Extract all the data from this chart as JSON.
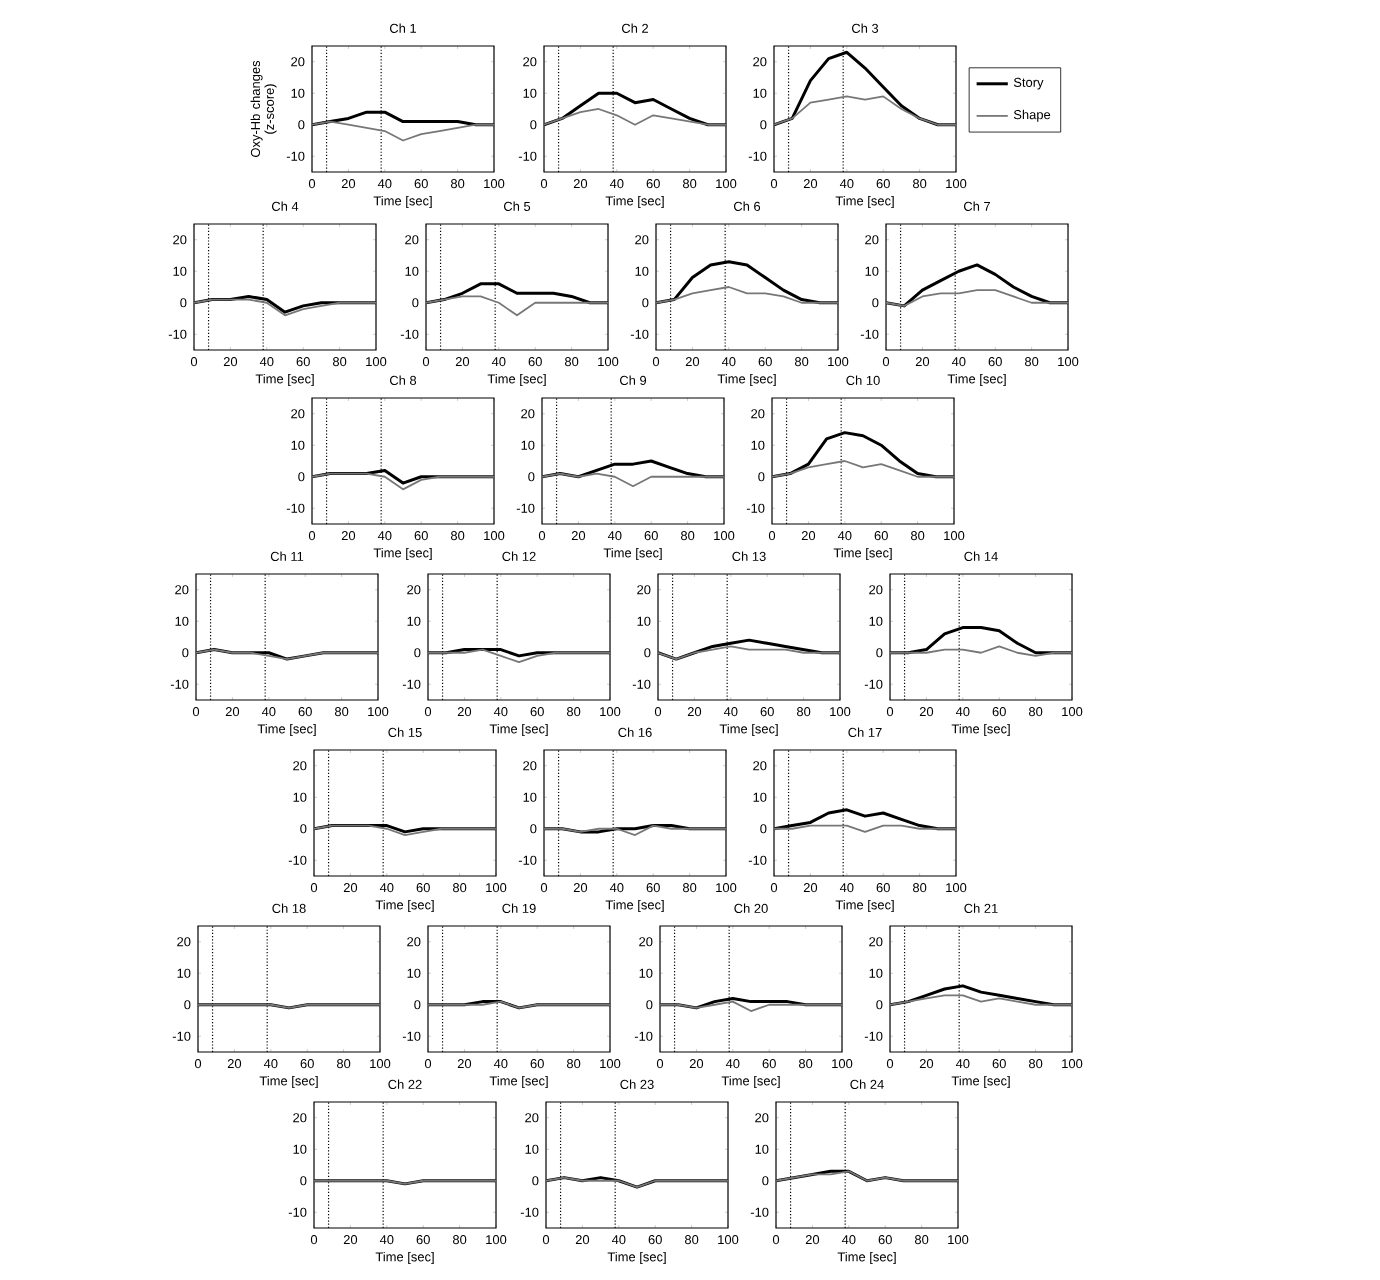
{
  "chart_data": [
    {
      "type": "line",
      "title": "Ch 1",
      "xlabel": "Time [sec]",
      "ylabel": "Oxy-Hb changes (z-score)",
      "x": [
        0,
        10,
        20,
        30,
        40,
        50,
        60,
        70,
        80,
        90,
        100
      ],
      "xlim": [
        0,
        100
      ],
      "ylim": [
        -15,
        25
      ],
      "xticks": [
        0,
        20,
        40,
        60,
        80,
        100
      ],
      "yticks": [
        -10,
        0,
        10,
        20
      ],
      "ref_lines": [
        {
          "axis": "x",
          "value": 8,
          "line_style": "dotted"
        },
        {
          "axis": "x",
          "value": 38,
          "line_style": "dotted"
        }
      ],
      "series": [
        {
          "color": "#000000",
          "values": [
            0,
            1,
            2,
            4,
            4,
            1,
            1,
            1,
            1,
            0,
            0
          ]
        },
        {
          "color": "#777777",
          "values": [
            0,
            1,
            0,
            -1,
            -2,
            -5,
            -3,
            -2,
            -1,
            0,
            0
          ]
        }
      ]
    },
    {
      "type": "line",
      "title": "Ch 2",
      "xlabel": "Time [sec]",
      "x": [
        0,
        10,
        20,
        30,
        40,
        50,
        60,
        70,
        80,
        90,
        100
      ],
      "xlim": [
        0,
        100
      ],
      "ylim": [
        -15,
        25
      ],
      "xticks": [
        0,
        20,
        40,
        60,
        80,
        100
      ],
      "yticks": [
        -10,
        0,
        10,
        20
      ],
      "ref_lines": [
        {
          "axis": "x",
          "value": 8,
          "line_style": "dotted"
        },
        {
          "axis": "x",
          "value": 38,
          "line_style": "dotted"
        }
      ],
      "series": [
        {
          "color": "#000000",
          "values": [
            0,
            2,
            6,
            10,
            10,
            7,
            8,
            5,
            2,
            0,
            0
          ]
        },
        {
          "color": "#777777",
          "values": [
            0,
            2,
            4,
            5,
            3,
            0,
            3,
            2,
            1,
            0,
            0
          ]
        }
      ]
    },
    {
      "type": "line",
      "title": "Ch 3",
      "xlabel": "Time [sec]",
      "x": [
        0,
        10,
        20,
        30,
        40,
        50,
        60,
        70,
        80,
        90,
        100
      ],
      "xlim": [
        0,
        100
      ],
      "ylim": [
        -15,
        25
      ],
      "xticks": [
        0,
        20,
        40,
        60,
        80,
        100
      ],
      "yticks": [
        -10,
        0,
        10,
        20
      ],
      "legend": "right",
      "ref_lines": [
        {
          "axis": "x",
          "value": 8,
          "line_style": "dotted"
        },
        {
          "axis": "x",
          "value": 38,
          "line_style": "dotted"
        }
      ],
      "series": [
        {
          "name": "Story",
          "color": "#000000",
          "values": [
            0,
            2,
            14,
            21,
            23,
            18,
            12,
            6,
            2,
            0,
            0
          ]
        },
        {
          "name": "Shape",
          "color": "#777777",
          "values": [
            0,
            2,
            7,
            8,
            9,
            8,
            9,
            5,
            2,
            0,
            0
          ]
        }
      ]
    },
    {
      "type": "line",
      "title": "Ch 4",
      "xlabel": "Time [sec]",
      "x": [
        0,
        10,
        20,
        30,
        40,
        50,
        60,
        70,
        80,
        90,
        100
      ],
      "xlim": [
        0,
        100
      ],
      "ylim": [
        -15,
        25
      ],
      "xticks": [
        0,
        20,
        40,
        60,
        80,
        100
      ],
      "yticks": [
        -10,
        0,
        10,
        20
      ],
      "ref_lines": [
        {
          "axis": "x",
          "value": 8,
          "line_style": "dotted"
        },
        {
          "axis": "x",
          "value": 38,
          "line_style": "dotted"
        }
      ],
      "series": [
        {
          "color": "#000000",
          "values": [
            0,
            1,
            1,
            2,
            1,
            -3,
            -1,
            0,
            0,
            0,
            0
          ]
        },
        {
          "color": "#777777",
          "values": [
            0,
            1,
            1,
            1,
            0,
            -4,
            -2,
            -1,
            0,
            0,
            0
          ]
        }
      ]
    },
    {
      "type": "line",
      "title": "Ch 5",
      "xlabel": "Time [sec]",
      "x": [
        0,
        10,
        20,
        30,
        40,
        50,
        60,
        70,
        80,
        90,
        100
      ],
      "xlim": [
        0,
        100
      ],
      "ylim": [
        -15,
        25
      ],
      "xticks": [
        0,
        20,
        40,
        60,
        80,
        100
      ],
      "yticks": [
        -10,
        0,
        10,
        20
      ],
      "ref_lines": [
        {
          "axis": "x",
          "value": 8,
          "line_style": "dotted"
        },
        {
          "axis": "x",
          "value": 38,
          "line_style": "dotted"
        }
      ],
      "series": [
        {
          "color": "#000000",
          "values": [
            0,
            1,
            3,
            6,
            6,
            3,
            3,
            3,
            2,
            0,
            0
          ]
        },
        {
          "color": "#777777",
          "values": [
            0,
            1,
            2,
            2,
            0,
            -4,
            0,
            0,
            0,
            0,
            0
          ]
        }
      ]
    },
    {
      "type": "line",
      "title": "Ch 6",
      "xlabel": "Time [sec]",
      "x": [
        0,
        10,
        20,
        30,
        40,
        50,
        60,
        70,
        80,
        90,
        100
      ],
      "xlim": [
        0,
        100
      ],
      "ylim": [
        -15,
        25
      ],
      "xticks": [
        0,
        20,
        40,
        60,
        80,
        100
      ],
      "yticks": [
        -10,
        0,
        10,
        20
      ],
      "ref_lines": [
        {
          "axis": "x",
          "value": 8,
          "line_style": "dotted"
        },
        {
          "axis": "x",
          "value": 38,
          "line_style": "dotted"
        }
      ],
      "series": [
        {
          "color": "#000000",
          "values": [
            0,
            1,
            8,
            12,
            13,
            12,
            8,
            4,
            1,
            0,
            0
          ]
        },
        {
          "color": "#777777",
          "values": [
            0,
            1,
            3,
            4,
            5,
            3,
            3,
            2,
            0,
            0,
            0
          ]
        }
      ]
    },
    {
      "type": "line",
      "title": "Ch 7",
      "xlabel": "Time [sec]",
      "x": [
        0,
        10,
        20,
        30,
        40,
        50,
        60,
        70,
        80,
        90,
        100
      ],
      "xlim": [
        0,
        100
      ],
      "ylim": [
        -15,
        25
      ],
      "xticks": [
        0,
        20,
        40,
        60,
        80,
        100
      ],
      "yticks": [
        -10,
        0,
        10,
        20
      ],
      "ref_lines": [
        {
          "axis": "x",
          "value": 8,
          "line_style": "dotted"
        },
        {
          "axis": "x",
          "value": 38,
          "line_style": "dotted"
        }
      ],
      "series": [
        {
          "color": "#000000",
          "values": [
            0,
            -1,
            4,
            7,
            10,
            12,
            9,
            5,
            2,
            0,
            0
          ]
        },
        {
          "color": "#777777",
          "values": [
            0,
            -1,
            2,
            3,
            3,
            4,
            4,
            2,
            0,
            0,
            0
          ]
        }
      ]
    },
    {
      "type": "line",
      "title": "Ch 8",
      "xlabel": "Time [sec]",
      "x": [
        0,
        10,
        20,
        30,
        40,
        50,
        60,
        70,
        80,
        90,
        100
      ],
      "xlim": [
        0,
        100
      ],
      "ylim": [
        -15,
        25
      ],
      "xticks": [
        0,
        20,
        40,
        60,
        80,
        100
      ],
      "yticks": [
        -10,
        0,
        10,
        20
      ],
      "ref_lines": [
        {
          "axis": "x",
          "value": 8,
          "line_style": "dotted"
        },
        {
          "axis": "x",
          "value": 38,
          "line_style": "dotted"
        }
      ],
      "series": [
        {
          "color": "#000000",
          "values": [
            0,
            1,
            1,
            1,
            2,
            -2,
            0,
            0,
            0,
            0,
            0
          ]
        },
        {
          "color": "#777777",
          "values": [
            0,
            1,
            1,
            1,
            0,
            -4,
            -1,
            0,
            0,
            0,
            0
          ]
        }
      ]
    },
    {
      "type": "line",
      "title": "Ch 9",
      "xlabel": "Time [sec]",
      "x": [
        0,
        10,
        20,
        30,
        40,
        50,
        60,
        70,
        80,
        90,
        100
      ],
      "xlim": [
        0,
        100
      ],
      "ylim": [
        -15,
        25
      ],
      "xticks": [
        0,
        20,
        40,
        60,
        80,
        100
      ],
      "yticks": [
        -10,
        0,
        10,
        20
      ],
      "ref_lines": [
        {
          "axis": "x",
          "value": 8,
          "line_style": "dotted"
        },
        {
          "axis": "x",
          "value": 38,
          "line_style": "dotted"
        }
      ],
      "series": [
        {
          "color": "#000000",
          "values": [
            0,
            1,
            0,
            2,
            4,
            4,
            5,
            3,
            1,
            0,
            0
          ]
        },
        {
          "color": "#777777",
          "values": [
            0,
            1,
            0,
            1,
            0,
            -3,
            0,
            0,
            0,
            0,
            0
          ]
        }
      ]
    },
    {
      "type": "line",
      "title": "Ch 10",
      "xlabel": "Time [sec]",
      "x": [
        0,
        10,
        20,
        30,
        40,
        50,
        60,
        70,
        80,
        90,
        100
      ],
      "xlim": [
        0,
        100
      ],
      "ylim": [
        -15,
        25
      ],
      "xticks": [
        0,
        20,
        40,
        60,
        80,
        100
      ],
      "yticks": [
        -10,
        0,
        10,
        20
      ],
      "ref_lines": [
        {
          "axis": "x",
          "value": 8,
          "line_style": "dotted"
        },
        {
          "axis": "x",
          "value": 38,
          "line_style": "dotted"
        }
      ],
      "series": [
        {
          "color": "#000000",
          "values": [
            0,
            1,
            4,
            12,
            14,
            13,
            10,
            5,
            1,
            0,
            0
          ]
        },
        {
          "color": "#777777",
          "values": [
            0,
            1,
            3,
            4,
            5,
            3,
            4,
            2,
            0,
            0,
            0
          ]
        }
      ]
    },
    {
      "type": "line",
      "title": "Ch 11",
      "xlabel": "Time [sec]",
      "x": [
        0,
        10,
        20,
        30,
        40,
        50,
        60,
        70,
        80,
        90,
        100
      ],
      "xlim": [
        0,
        100
      ],
      "ylim": [
        -15,
        25
      ],
      "xticks": [
        0,
        20,
        40,
        60,
        80,
        100
      ],
      "yticks": [
        -10,
        0,
        10,
        20
      ],
      "ref_lines": [
        {
          "axis": "x",
          "value": 8,
          "line_style": "dotted"
        },
        {
          "axis": "x",
          "value": 38,
          "line_style": "dotted"
        }
      ],
      "series": [
        {
          "color": "#000000",
          "values": [
            0,
            1,
            0,
            0,
            0,
            -2,
            -1,
            0,
            0,
            0,
            0
          ]
        },
        {
          "color": "#777777",
          "values": [
            0,
            1,
            0,
            0,
            -1,
            -2,
            -1,
            0,
            0,
            0,
            0
          ]
        }
      ]
    },
    {
      "type": "line",
      "title": "Ch 12",
      "xlabel": "Time [sec]",
      "x": [
        0,
        10,
        20,
        30,
        40,
        50,
        60,
        70,
        80,
        90,
        100
      ],
      "xlim": [
        0,
        100
      ],
      "ylim": [
        -15,
        25
      ],
      "xticks": [
        0,
        20,
        40,
        60,
        80,
        100
      ],
      "yticks": [
        -10,
        0,
        10,
        20
      ],
      "ref_lines": [
        {
          "axis": "x",
          "value": 8,
          "line_style": "dotted"
        },
        {
          "axis": "x",
          "value": 38,
          "line_style": "dotted"
        }
      ],
      "series": [
        {
          "color": "#000000",
          "values": [
            0,
            0,
            1,
            1,
            1,
            -1,
            0,
            0,
            0,
            0,
            0
          ]
        },
        {
          "color": "#777777",
          "values": [
            0,
            0,
            0,
            1,
            -1,
            -3,
            -1,
            0,
            0,
            0,
            0
          ]
        }
      ]
    },
    {
      "type": "line",
      "title": "Ch 13",
      "xlabel": "Time [sec]",
      "x": [
        0,
        10,
        20,
        30,
        40,
        50,
        60,
        70,
        80,
        90,
        100
      ],
      "xlim": [
        0,
        100
      ],
      "ylim": [
        -15,
        25
      ],
      "xticks": [
        0,
        20,
        40,
        60,
        80,
        100
      ],
      "yticks": [
        -10,
        0,
        10,
        20
      ],
      "ref_lines": [
        {
          "axis": "x",
          "value": 8,
          "line_style": "dotted"
        },
        {
          "axis": "x",
          "value": 38,
          "line_style": "dotted"
        }
      ],
      "series": [
        {
          "color": "#000000",
          "values": [
            0,
            -2,
            0,
            2,
            3,
            4,
            3,
            2,
            1,
            0,
            0
          ]
        },
        {
          "color": "#777777",
          "values": [
            0,
            -2,
            0,
            1,
            2,
            1,
            1,
            1,
            0,
            0,
            0
          ]
        }
      ]
    },
    {
      "type": "line",
      "title": "Ch 14",
      "xlabel": "Time [sec]",
      "x": [
        0,
        10,
        20,
        30,
        40,
        50,
        60,
        70,
        80,
        90,
        100
      ],
      "xlim": [
        0,
        100
      ],
      "ylim": [
        -15,
        25
      ],
      "xticks": [
        0,
        20,
        40,
        60,
        80,
        100
      ],
      "yticks": [
        -10,
        0,
        10,
        20
      ],
      "ref_lines": [
        {
          "axis": "x",
          "value": 8,
          "line_style": "dotted"
        },
        {
          "axis": "x",
          "value": 38,
          "line_style": "dotted"
        }
      ],
      "series": [
        {
          "color": "#000000",
          "values": [
            0,
            0,
            1,
            6,
            8,
            8,
            7,
            3,
            0,
            0,
            0
          ]
        },
        {
          "color": "#777777",
          "values": [
            0,
            0,
            0,
            1,
            1,
            0,
            2,
            0,
            -1,
            0,
            0
          ]
        }
      ]
    },
    {
      "type": "line",
      "title": "Ch 15",
      "xlabel": "Time [sec]",
      "x": [
        0,
        10,
        20,
        30,
        40,
        50,
        60,
        70,
        80,
        90,
        100
      ],
      "xlim": [
        0,
        100
      ],
      "ylim": [
        -15,
        25
      ],
      "xticks": [
        0,
        20,
        40,
        60,
        80,
        100
      ],
      "yticks": [
        -10,
        0,
        10,
        20
      ],
      "ref_lines": [
        {
          "axis": "x",
          "value": 8,
          "line_style": "dotted"
        },
        {
          "axis": "x",
          "value": 38,
          "line_style": "dotted"
        }
      ],
      "series": [
        {
          "color": "#000000",
          "values": [
            0,
            1,
            1,
            1,
            1,
            -1,
            0,
            0,
            0,
            0,
            0
          ]
        },
        {
          "color": "#777777",
          "values": [
            0,
            1,
            1,
            1,
            0,
            -2,
            -1,
            0,
            0,
            0,
            0
          ]
        }
      ]
    },
    {
      "type": "line",
      "title": "Ch 16",
      "xlabel": "Time [sec]",
      "x": [
        0,
        10,
        20,
        30,
        40,
        50,
        60,
        70,
        80,
        90,
        100
      ],
      "xlim": [
        0,
        100
      ],
      "ylim": [
        -15,
        25
      ],
      "xticks": [
        0,
        20,
        40,
        60,
        80,
        100
      ],
      "yticks": [
        -10,
        0,
        10,
        20
      ],
      "ref_lines": [
        {
          "axis": "x",
          "value": 8,
          "line_style": "dotted"
        },
        {
          "axis": "x",
          "value": 38,
          "line_style": "dotted"
        }
      ],
      "series": [
        {
          "color": "#000000",
          "values": [
            0,
            0,
            -1,
            -1,
            0,
            0,
            1,
            1,
            0,
            0,
            0
          ]
        },
        {
          "color": "#777777",
          "values": [
            0,
            0,
            -1,
            0,
            0,
            -2,
            1,
            0,
            0,
            0,
            0
          ]
        }
      ]
    },
    {
      "type": "line",
      "title": "Ch 17",
      "xlabel": "Time [sec]",
      "x": [
        0,
        10,
        20,
        30,
        40,
        50,
        60,
        70,
        80,
        90,
        100
      ],
      "xlim": [
        0,
        100
      ],
      "ylim": [
        -15,
        25
      ],
      "xticks": [
        0,
        20,
        40,
        60,
        80,
        100
      ],
      "yticks": [
        -10,
        0,
        10,
        20
      ],
      "ref_lines": [
        {
          "axis": "x",
          "value": 8,
          "line_style": "dotted"
        },
        {
          "axis": "x",
          "value": 38,
          "line_style": "dotted"
        }
      ],
      "series": [
        {
          "color": "#000000",
          "values": [
            0,
            1,
            2,
            5,
            6,
            4,
            5,
            3,
            1,
            0,
            0
          ]
        },
        {
          "color": "#777777",
          "values": [
            0,
            0,
            1,
            1,
            1,
            -1,
            1,
            1,
            0,
            0,
            0
          ]
        }
      ]
    },
    {
      "type": "line",
      "title": "Ch 18",
      "xlabel": "Time [sec]",
      "x": [
        0,
        10,
        20,
        30,
        40,
        50,
        60,
        70,
        80,
        90,
        100
      ],
      "xlim": [
        0,
        100
      ],
      "ylim": [
        -15,
        25
      ],
      "xticks": [
        0,
        20,
        40,
        60,
        80,
        100
      ],
      "yticks": [
        -10,
        0,
        10,
        20
      ],
      "ref_lines": [
        {
          "axis": "x",
          "value": 8,
          "line_style": "dotted"
        },
        {
          "axis": "x",
          "value": 38,
          "line_style": "dotted"
        }
      ],
      "series": [
        {
          "color": "#000000",
          "values": [
            0,
            0,
            0,
            0,
            0,
            -1,
            0,
            0,
            0,
            0,
            0
          ]
        },
        {
          "color": "#777777",
          "values": [
            0,
            0,
            0,
            0,
            0,
            -1,
            0,
            0,
            0,
            0,
            0
          ]
        }
      ]
    },
    {
      "type": "line",
      "title": "Ch 19",
      "xlabel": "Time [sec]",
      "x": [
        0,
        10,
        20,
        30,
        40,
        50,
        60,
        70,
        80,
        90,
        100
      ],
      "xlim": [
        0,
        100
      ],
      "ylim": [
        -15,
        25
      ],
      "xticks": [
        0,
        20,
        40,
        60,
        80,
        100
      ],
      "yticks": [
        -10,
        0,
        10,
        20
      ],
      "ref_lines": [
        {
          "axis": "x",
          "value": 8,
          "line_style": "dotted"
        },
        {
          "axis": "x",
          "value": 38,
          "line_style": "dotted"
        }
      ],
      "series": [
        {
          "color": "#000000",
          "values": [
            0,
            0,
            0,
            1,
            1,
            -1,
            0,
            0,
            0,
            0,
            0
          ]
        },
        {
          "color": "#777777",
          "values": [
            0,
            0,
            0,
            0,
            1,
            -1,
            0,
            0,
            0,
            0,
            0
          ]
        }
      ]
    },
    {
      "type": "line",
      "title": "Ch 20",
      "xlabel": "Time [sec]",
      "x": [
        0,
        10,
        20,
        30,
        40,
        50,
        60,
        70,
        80,
        90,
        100
      ],
      "xlim": [
        0,
        100
      ],
      "ylim": [
        -15,
        25
      ],
      "xticks": [
        0,
        20,
        40,
        60,
        80,
        100
      ],
      "yticks": [
        -10,
        0,
        10,
        20
      ],
      "ref_lines": [
        {
          "axis": "x",
          "value": 8,
          "line_style": "dotted"
        },
        {
          "axis": "x",
          "value": 38,
          "line_style": "dotted"
        }
      ],
      "series": [
        {
          "color": "#000000",
          "values": [
            0,
            0,
            -1,
            1,
            2,
            1,
            1,
            1,
            0,
            0,
            0
          ]
        },
        {
          "color": "#777777",
          "values": [
            0,
            0,
            -1,
            0,
            1,
            -2,
            0,
            0,
            0,
            0,
            0
          ]
        }
      ]
    },
    {
      "type": "line",
      "title": "Ch 21",
      "xlabel": "Time [sec]",
      "x": [
        0,
        10,
        20,
        30,
        40,
        50,
        60,
        70,
        80,
        90,
        100
      ],
      "xlim": [
        0,
        100
      ],
      "ylim": [
        -15,
        25
      ],
      "xticks": [
        0,
        20,
        40,
        60,
        80,
        100
      ],
      "yticks": [
        -10,
        0,
        10,
        20
      ],
      "ref_lines": [
        {
          "axis": "x",
          "value": 8,
          "line_style": "dotted"
        },
        {
          "axis": "x",
          "value": 38,
          "line_style": "dotted"
        }
      ],
      "series": [
        {
          "color": "#000000",
          "values": [
            0,
            1,
            3,
            5,
            6,
            4,
            3,
            2,
            1,
            0,
            0
          ]
        },
        {
          "color": "#777777",
          "values": [
            0,
            1,
            2,
            3,
            3,
            1,
            2,
            1,
            0,
            0,
            0
          ]
        }
      ]
    },
    {
      "type": "line",
      "title": "Ch 22",
      "xlabel": "Time [sec]",
      "x": [
        0,
        10,
        20,
        30,
        40,
        50,
        60,
        70,
        80,
        90,
        100
      ],
      "xlim": [
        0,
        100
      ],
      "ylim": [
        -15,
        25
      ],
      "xticks": [
        0,
        20,
        40,
        60,
        80,
        100
      ],
      "yticks": [
        -10,
        0,
        10,
        20
      ],
      "ref_lines": [
        {
          "axis": "x",
          "value": 8,
          "line_style": "dotted"
        },
        {
          "axis": "x",
          "value": 38,
          "line_style": "dotted"
        }
      ],
      "series": [
        {
          "color": "#000000",
          "values": [
            0,
            0,
            0,
            0,
            0,
            -1,
            0,
            0,
            0,
            0,
            0
          ]
        },
        {
          "color": "#777777",
          "values": [
            0,
            0,
            0,
            0,
            0,
            -1,
            0,
            0,
            0,
            0,
            0
          ]
        }
      ]
    },
    {
      "type": "line",
      "title": "Ch 23",
      "xlabel": "Time [sec]",
      "x": [
        0,
        10,
        20,
        30,
        40,
        50,
        60,
        70,
        80,
        90,
        100
      ],
      "xlim": [
        0,
        100
      ],
      "ylim": [
        -15,
        25
      ],
      "xticks": [
        0,
        20,
        40,
        60,
        80,
        100
      ],
      "yticks": [
        -10,
        0,
        10,
        20
      ],
      "ref_lines": [
        {
          "axis": "x",
          "value": 8,
          "line_style": "dotted"
        },
        {
          "axis": "x",
          "value": 38,
          "line_style": "dotted"
        }
      ],
      "series": [
        {
          "color": "#000000",
          "values": [
            0,
            1,
            0,
            1,
            0,
            -2,
            0,
            0,
            0,
            0,
            0
          ]
        },
        {
          "color": "#777777",
          "values": [
            0,
            1,
            0,
            0,
            0,
            -2,
            0,
            0,
            0,
            0,
            0
          ]
        }
      ]
    },
    {
      "type": "line",
      "title": "Ch 24",
      "xlabel": "Time [sec]",
      "x": [
        0,
        10,
        20,
        30,
        40,
        50,
        60,
        70,
        80,
        90,
        100
      ],
      "xlim": [
        0,
        100
      ],
      "ylim": [
        -15,
        25
      ],
      "xticks": [
        0,
        20,
        40,
        60,
        80,
        100
      ],
      "yticks": [
        -10,
        0,
        10,
        20
      ],
      "ref_lines": [
        {
          "axis": "x",
          "value": 8,
          "line_style": "dotted"
        },
        {
          "axis": "x",
          "value": 38,
          "line_style": "dotted"
        }
      ],
      "series": [
        {
          "color": "#000000",
          "values": [
            0,
            1,
            2,
            3,
            3,
            0,
            1,
            0,
            0,
            0,
            0
          ]
        },
        {
          "color": "#777777",
          "values": [
            0,
            1,
            2,
            2,
            3,
            0,
            1,
            0,
            0,
            0,
            0
          ]
        }
      ]
    }
  ]
}
